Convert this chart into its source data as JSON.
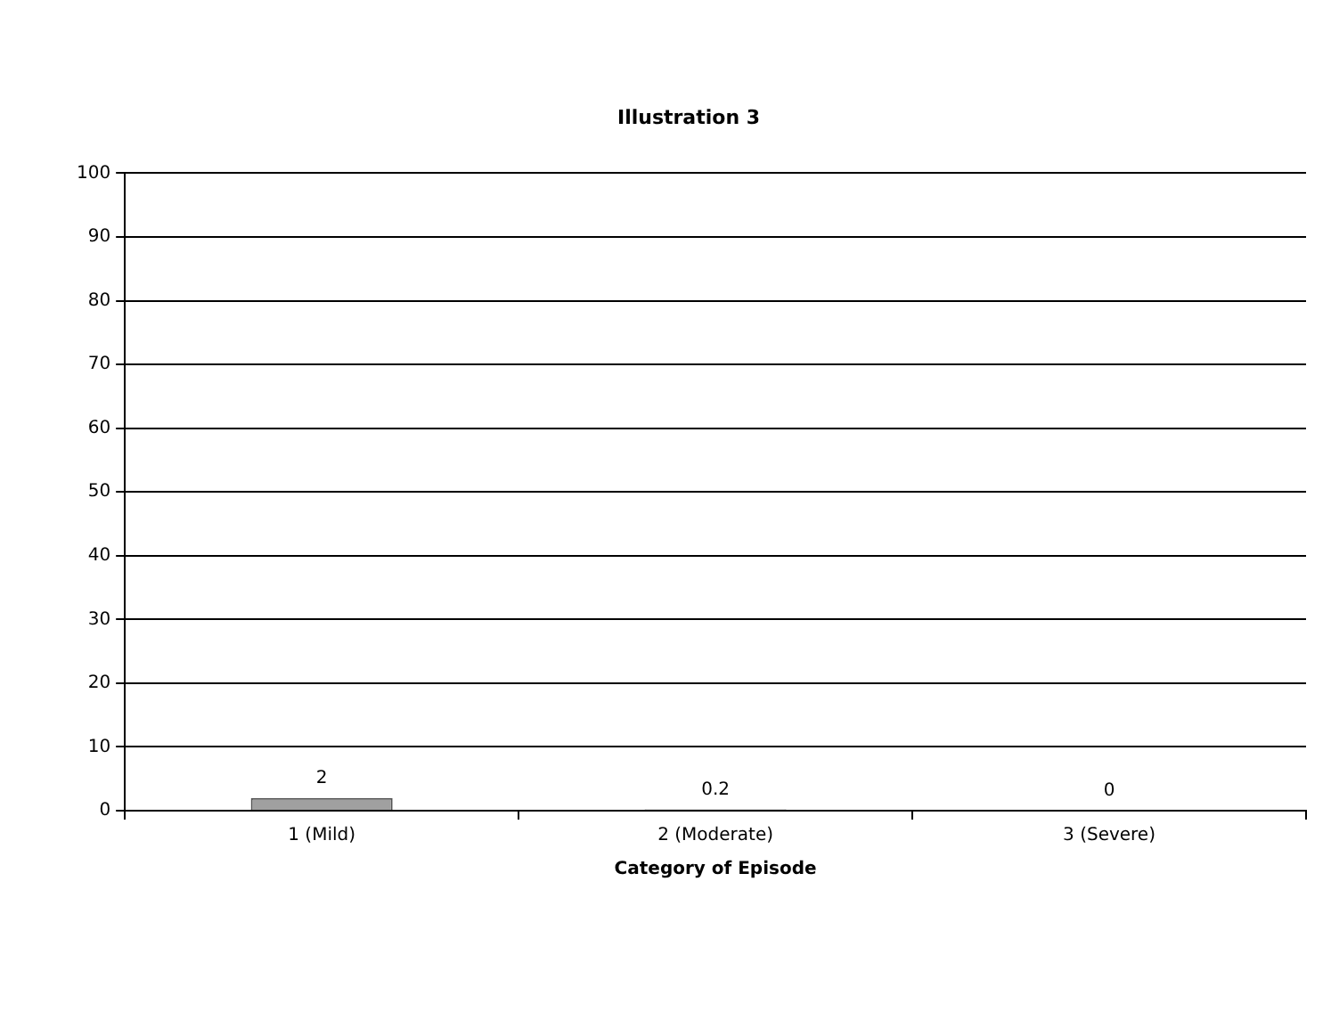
{
  "chart_data": {
    "type": "bar",
    "title": "Illustration 3",
    "xlabel": "Category of Episode",
    "categories": [
      "1 (Mild)",
      "2 (Moderate)",
      "3 (Severe)"
    ],
    "values": [
      2,
      0.2,
      0
    ],
    "color": "#a0a0a0",
    "ylim": [
      0,
      100
    ],
    "yticks": [
      0,
      10,
      20,
      30,
      40,
      50,
      60,
      70,
      80,
      90,
      100
    ],
    "grid": "y",
    "data_labels": true,
    "legend": false
  }
}
